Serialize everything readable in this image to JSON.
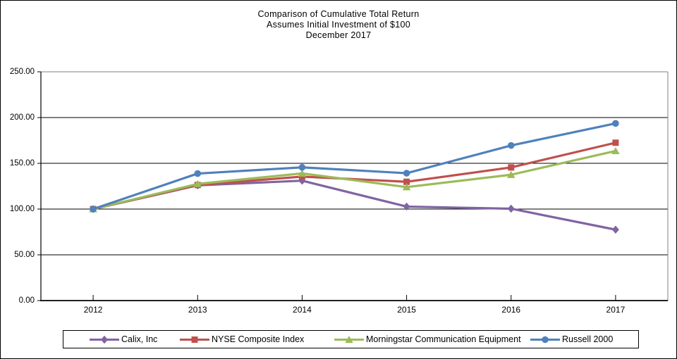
{
  "chart_data": {
    "type": "line",
    "title": "Comparison of Cumulative Total Return",
    "subtitle": "Assumes Initial Investment of $100",
    "date_label": "December 2017",
    "categories": [
      "2012",
      "2013",
      "2014",
      "2015",
      "2016",
      "2017"
    ],
    "series": [
      {
        "name": "Calix, Inc",
        "color": "#8064A2",
        "marker": "diamond",
        "values": [
          100.0,
          125.9,
          131.0,
          102.7,
          100.4,
          77.5
        ]
      },
      {
        "name": "NYSE Composite Index",
        "color": "#C0504D",
        "marker": "square",
        "values": [
          100.0,
          126.3,
          135.5,
          129.8,
          145.5,
          172.5
        ]
      },
      {
        "name": "Morningstar Communication Equipment",
        "color": "#9BBB59",
        "marker": "triangle",
        "values": [
          100.0,
          127.5,
          139.0,
          124.0,
          137.5,
          163.5
        ]
      },
      {
        "name": "Russell 2000",
        "color": "#4F81BD",
        "marker": "circle",
        "values": [
          100.0,
          138.8,
          145.6,
          139.2,
          169.5,
          193.6
        ]
      }
    ],
    "ylim": [
      0,
      250
    ],
    "y_ticks": [
      0,
      50,
      100,
      150,
      200,
      250
    ],
    "y_tick_labels": [
      "0.00",
      "50.00",
      "100.00",
      "150.00",
      "200.00",
      "250.00"
    ],
    "grid": true,
    "legend_position": "bottom",
    "axis_color": "#000000",
    "border_color": "#808080",
    "background": "#FFFFFF"
  }
}
